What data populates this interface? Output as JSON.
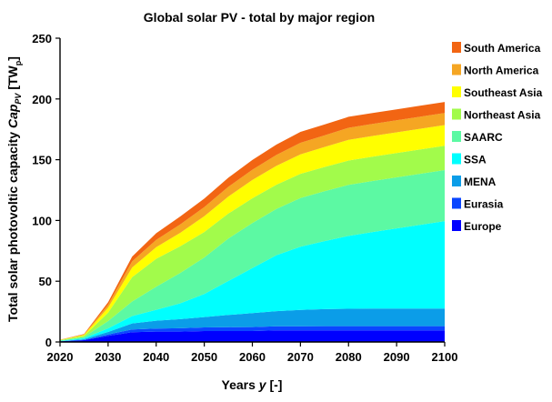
{
  "chart_data": {
    "type": "area",
    "stacked": true,
    "title": "Global solar PV - total by major region",
    "xlabel_main": "Years ",
    "xlabel_var": "y",
    "xlabel_unit": " [-]",
    "ylabel_main": "Total solar photovoltic capacity ",
    "ylabel_var": "Cap",
    "ylabel_sub": "PV",
    "ylabel_unit_open": " [TW",
    "ylabel_unit_sub": "p",
    "ylabel_unit_close": "]",
    "xlim": [
      2020,
      2100
    ],
    "ylim": [
      0,
      250
    ],
    "x_ticks": [
      "2020",
      "2030",
      "2040",
      "2050",
      "2060",
      "2070",
      "2080",
      "2090",
      "2100"
    ],
    "y_ticks": [
      "0",
      "50",
      "100",
      "150",
      "200",
      "250"
    ],
    "legend_position": "right",
    "x": [
      2020,
      2025,
      2030,
      2035,
      2040,
      2045,
      2050,
      2055,
      2060,
      2065,
      2070,
      2075,
      2080,
      2085,
      2090,
      2095,
      2100
    ],
    "series": [
      {
        "name": "Europe",
        "color": "#0000ff",
        "values": [
          0.5,
          1.5,
          5,
          8,
          8.5,
          8.5,
          9,
          9,
          9,
          9.5,
          9.5,
          9.5,
          9.5,
          9.5,
          9.5,
          9.5,
          9.5
        ]
      },
      {
        "name": "Eurasia",
        "color": "#0a46ff",
        "values": [
          0.1,
          0.3,
          1.2,
          2.3,
          2.5,
          2.8,
          3,
          3.2,
          3.3,
          3.4,
          3.4,
          3.5,
          3.5,
          3.5,
          3.5,
          3.5,
          3.5
        ]
      },
      {
        "name": "MENA",
        "color": "#0b9de8",
        "values": [
          0.1,
          0.5,
          2,
          5,
          6.5,
          7.5,
          8.5,
          10,
          11.5,
          12.5,
          13.5,
          14,
          14.3,
          14.5,
          14.5,
          14.5,
          14.5
        ]
      },
      {
        "name": "SSA",
        "color": "#00ffff",
        "values": [
          0.2,
          0.8,
          3,
          6,
          9,
          13,
          19,
          28,
          37,
          46,
          52,
          56,
          60,
          63,
          66,
          69,
          72
        ]
      },
      {
        "name": "SAARC",
        "color": "#5cf9a3",
        "values": [
          0.3,
          1,
          6,
          12,
          19,
          25,
          30,
          35,
          37,
          38,
          40,
          41,
          42,
          42,
          42,
          42,
          42
        ]
      },
      {
        "name": "Northeast Asia",
        "color": "#a2fb4b",
        "values": [
          0.3,
          1,
          7,
          20,
          23,
          22,
          21,
          20.5,
          20.5,
          20,
          20,
          20,
          20,
          20,
          20,
          20,
          20
        ]
      },
      {
        "name": "Southeast Asia",
        "color": "#ffff00",
        "values": [
          0.2,
          0.7,
          4,
          8,
          9.5,
          11,
          13,
          14,
          15,
          15.5,
          16,
          16.5,
          17,
          17,
          17,
          17,
          17
        ]
      },
      {
        "name": "North America",
        "color": "#f5a623",
        "values": [
          0.1,
          0.4,
          2.5,
          5,
          6,
          7,
          7.5,
          8,
          8.5,
          9,
          9.5,
          9.5,
          10,
          10,
          10,
          10,
          10
        ]
      },
      {
        "name": "South America",
        "color": "#f26513",
        "values": [
          0.1,
          0.3,
          2,
          4,
          5.5,
          6.5,
          7,
          7.5,
          8,
          8.5,
          9,
          9,
          9,
          9,
          9,
          9,
          9
        ]
      }
    ]
  }
}
